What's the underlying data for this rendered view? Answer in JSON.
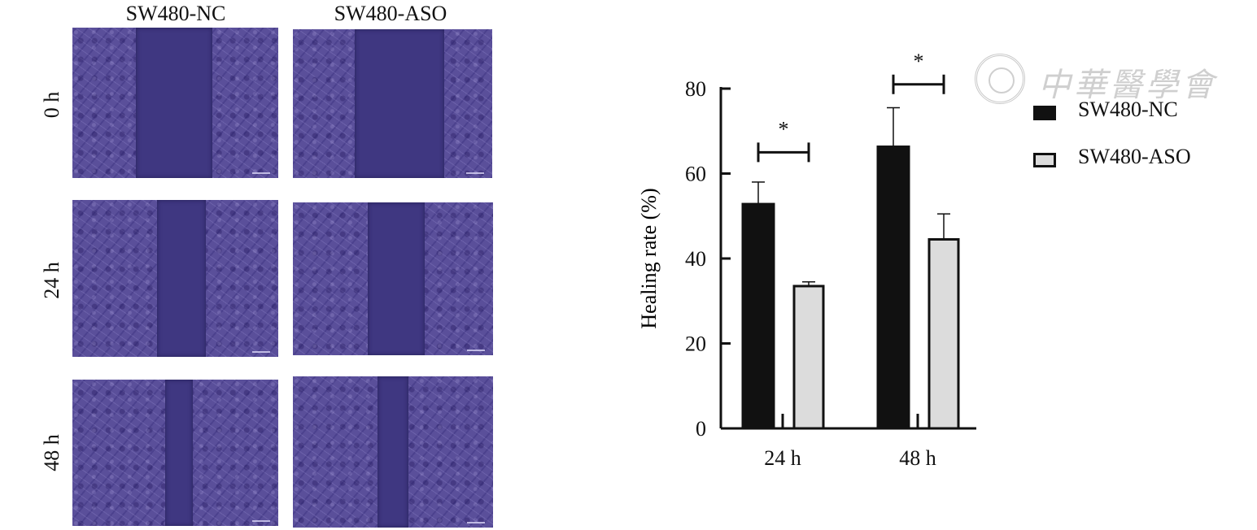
{
  "figure": {
    "columns": [
      "SW480-NC",
      "SW480-ASO"
    ],
    "rows": [
      "0 h",
      "24 h",
      "48 h"
    ]
  },
  "watermark": {
    "text": "中華醫學會"
  },
  "colors": {
    "nc_bar": "#111111",
    "aso_bar": "#dcdcdc",
    "micrograph": "#5a4f9a"
  },
  "chart_data": {
    "type": "bar",
    "categories": [
      "24 h",
      "48 h"
    ],
    "series": [
      {
        "name": "SW480-NC",
        "values": [
          53,
          66.5
        ],
        "errors": [
          5,
          9
        ]
      },
      {
        "name": "SW480-ASO",
        "values": [
          33.5,
          44.5
        ],
        "errors": [
          1,
          6
        ]
      }
    ],
    "ylabel": "Healing rate (%)",
    "xlabel": "",
    "ylim": [
      0,
      80
    ],
    "yticks": [
      0,
      20,
      40,
      60,
      80
    ],
    "significance": [
      {
        "category": "24 h",
        "label": "*"
      },
      {
        "category": "48 h",
        "label": "*"
      }
    ],
    "legend": "top-right",
    "grid": false
  }
}
